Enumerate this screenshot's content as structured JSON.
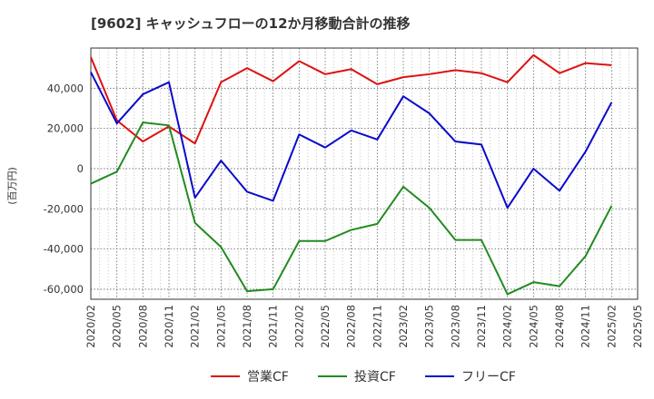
{
  "chart_data": {
    "type": "line",
    "title": "[9602]  キャッシュフローの12か月移動合計の推移",
    "ylabel": "(百万円)",
    "xlabel": "",
    "ylim": [
      -65000,
      60000
    ],
    "yticks": [
      40000,
      20000,
      0,
      -20000,
      -40000,
      -60000
    ],
    "ytick_labels": [
      "40,000",
      "20,000",
      "0",
      "-20,000",
      "-40,000",
      "-60,000"
    ],
    "x_ticks": [
      "2020/02",
      "2020/05",
      "2020/08",
      "2020/11",
      "2021/02",
      "2021/05",
      "2021/08",
      "2021/11",
      "2022/02",
      "2022/05",
      "2022/08",
      "2022/11",
      "2023/02",
      "2023/05",
      "2023/08",
      "2023/11",
      "2024/02",
      "2024/05",
      "2024/08",
      "2024/11",
      "2025/02",
      "2025/05"
    ],
    "grid": true,
    "legend": "bottom",
    "series": [
      {
        "name": "営業CF",
        "color": "#dd1111",
        "values": [
          55500,
          24000,
          13500,
          21000,
          12500,
          43000,
          50000,
          43500,
          53500,
          47000,
          49500,
          42000,
          45500,
          47000,
          49000,
          47500,
          43000,
          56500,
          47500,
          52500,
          51500
        ]
      },
      {
        "name": "投資CF",
        "color": "#228b22",
        "values": [
          -7500,
          -1500,
          23000,
          21500,
          -27000,
          -39000,
          -61000,
          -60000,
          -36000,
          -36000,
          -30500,
          -27500,
          -9000,
          -19500,
          -35500,
          -35500,
          -62500,
          -56500,
          -58500,
          -43500,
          -18500
        ]
      },
      {
        "name": "フリーCF",
        "color": "#0a0acc",
        "values": [
          48000,
          22500,
          37000,
          43000,
          -14500,
          4000,
          -11500,
          -16000,
          17000,
          10500,
          19000,
          14500,
          36000,
          27500,
          13500,
          12000,
          -19500,
          0,
          -11000,
          8500,
          33000
        ]
      }
    ]
  }
}
